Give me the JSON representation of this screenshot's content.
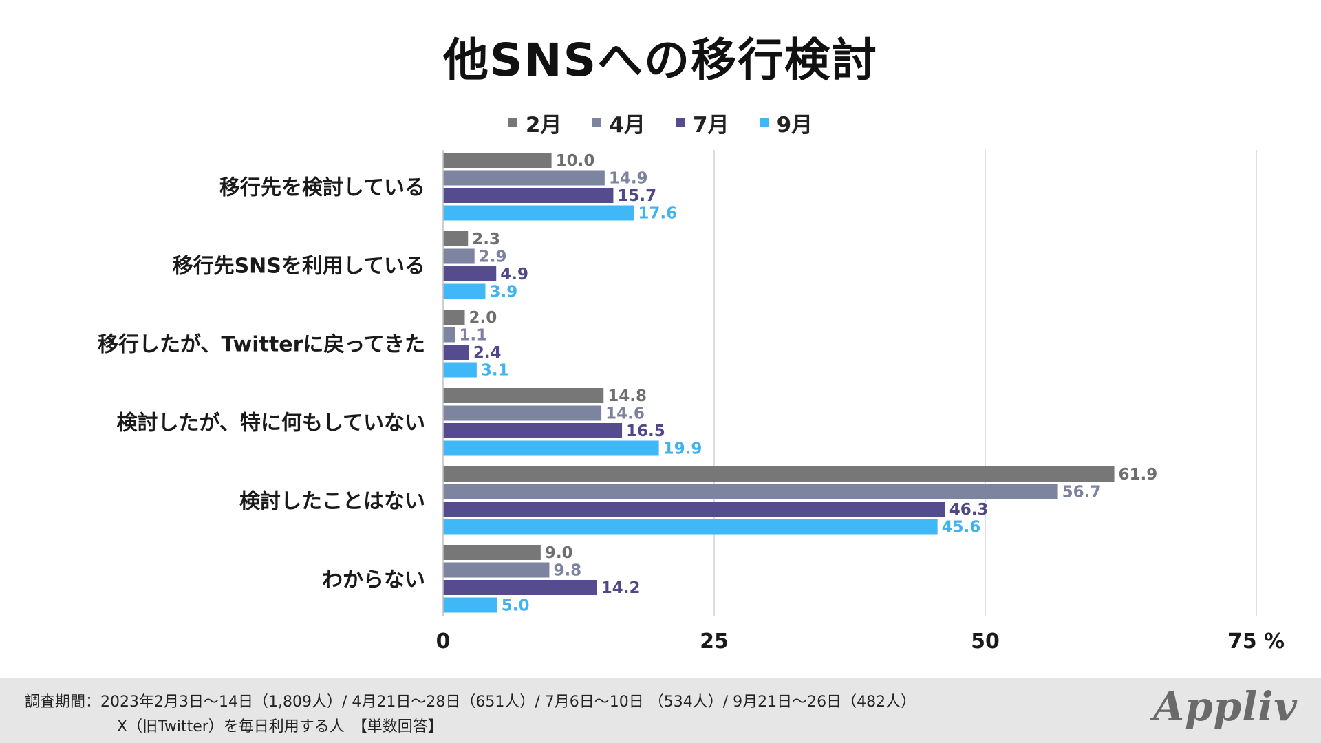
{
  "footer": {
    "line1": "調査期間：2023年2月3日〜14日（1,809人）/ 4月21日〜28日（651人）/ 7月6日〜10日 （534人）/ 9月21日〜26日（482人）",
    "line2": "X（旧Twitter）を毎日利用する人　【単数回答】",
    "brand": "Appliv"
  },
  "chart_data": {
    "type": "bar",
    "orientation": "horizontal",
    "title": "他SNSへの移行検討",
    "categories": [
      "移行先を検討している",
      "移行先SNSを利用している",
      "移行したが、Twitterに戻ってきた",
      "検討したが、特に何もしていない",
      "検討したことはない",
      "わからない"
    ],
    "series": [
      {
        "name": "2月",
        "color": "#777777",
        "label_color": "#6e6e6e",
        "values": [
          10.0,
          2.3,
          2.0,
          14.8,
          61.9,
          9.0
        ]
      },
      {
        "name": "4月",
        "color": "#7d849f",
        "label_color": "#7b819e",
        "values": [
          14.9,
          2.9,
          1.1,
          14.6,
          56.7,
          9.8
        ]
      },
      {
        "name": "7月",
        "color": "#544c8e",
        "label_color": "#4e4888",
        "values": [
          15.7,
          4.9,
          2.4,
          16.5,
          46.3,
          14.2
        ]
      },
      {
        "name": "9月",
        "color": "#40b7f7",
        "label_color": "#3fb3ef",
        "values": [
          17.6,
          3.9,
          3.1,
          19.9,
          45.6,
          5.0
        ]
      }
    ],
    "xlim": [
      0,
      75
    ],
    "xticks": [
      "0",
      "25",
      "50",
      "75"
    ],
    "unit": "%",
    "grid": true,
    "legend": "top-center"
  }
}
